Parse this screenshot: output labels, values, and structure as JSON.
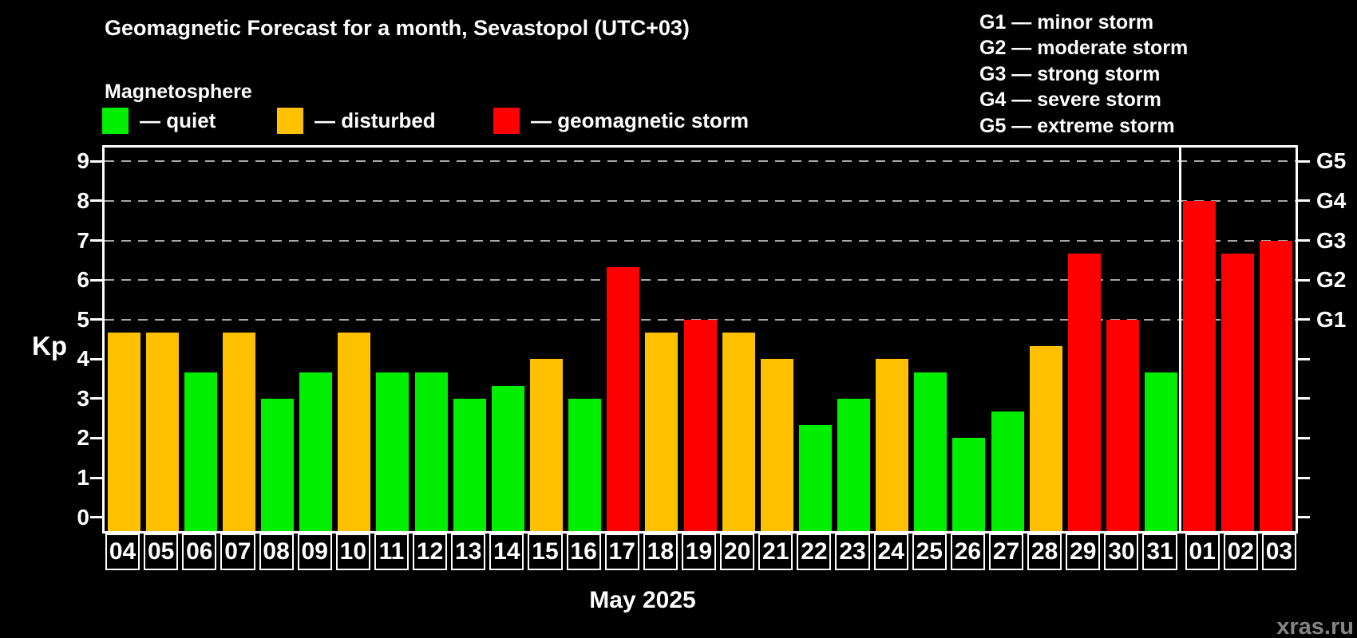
{
  "header": {
    "title": "Geomagnetic Forecast for a month, Sevastopol (UTC+03)",
    "subtitle": "Magnetosphere"
  },
  "legend": {
    "items": [
      {
        "key": "quiet",
        "label": "— quiet",
        "color": "#00ee00"
      },
      {
        "key": "disturbed",
        "label": "— disturbed",
        "color": "#ffc000"
      },
      {
        "key": "storm",
        "label": "— geomagnetic storm",
        "color": "#ff0000"
      }
    ]
  },
  "g_legend": {
    "lines": [
      "G1 — minor storm",
      "G2 — moderate storm",
      "G3 — strong storm",
      "G4 — severe storm",
      "G5 — extreme storm"
    ]
  },
  "watermark": "xras.ru",
  "chart_data": {
    "type": "bar",
    "title": "Geomagnetic Forecast for a month, Sevastopol (UTC+03)",
    "ylabel": "Kp",
    "xlabel": "May 2025",
    "ylim": [
      0,
      9
    ],
    "yticks": [
      0,
      1,
      2,
      3,
      4,
      5,
      6,
      7,
      8,
      9
    ],
    "gridlines_at_kp": [
      5,
      6,
      7,
      8,
      9
    ],
    "grid": "dashed-horizontal",
    "legend_position": "top",
    "right_axis_labels": [
      {
        "kp": 5,
        "text": "G1"
      },
      {
        "kp": 6,
        "text": "G2"
      },
      {
        "kp": 7,
        "text": "G3"
      },
      {
        "kp": 8,
        "text": "G4"
      },
      {
        "kp": 9,
        "text": "G5"
      }
    ],
    "month_divider_after_day": "31",
    "color_map": {
      "quiet": "#00ee00",
      "disturbed": "#ffc000",
      "storm": "#ff0000"
    },
    "bars": [
      {
        "day": "04",
        "kp": 4.67,
        "status": "disturbed"
      },
      {
        "day": "05",
        "kp": 4.67,
        "status": "disturbed"
      },
      {
        "day": "06",
        "kp": 3.67,
        "status": "quiet"
      },
      {
        "day": "07",
        "kp": 4.67,
        "status": "disturbed"
      },
      {
        "day": "08",
        "kp": 3.0,
        "status": "quiet"
      },
      {
        "day": "09",
        "kp": 3.67,
        "status": "quiet"
      },
      {
        "day": "10",
        "kp": 4.67,
        "status": "disturbed"
      },
      {
        "day": "11",
        "kp": 3.67,
        "status": "quiet"
      },
      {
        "day": "12",
        "kp": 3.67,
        "status": "quiet"
      },
      {
        "day": "13",
        "kp": 3.0,
        "status": "quiet"
      },
      {
        "day": "14",
        "kp": 3.33,
        "status": "quiet"
      },
      {
        "day": "15",
        "kp": 4.0,
        "status": "disturbed"
      },
      {
        "day": "16",
        "kp": 3.0,
        "status": "quiet"
      },
      {
        "day": "17",
        "kp": 6.33,
        "status": "storm"
      },
      {
        "day": "18",
        "kp": 4.67,
        "status": "disturbed"
      },
      {
        "day": "19",
        "kp": 5.0,
        "status": "storm"
      },
      {
        "day": "20",
        "kp": 4.67,
        "status": "disturbed"
      },
      {
        "day": "21",
        "kp": 4.0,
        "status": "disturbed"
      },
      {
        "day": "22",
        "kp": 2.33,
        "status": "quiet"
      },
      {
        "day": "23",
        "kp": 3.0,
        "status": "quiet"
      },
      {
        "day": "24",
        "kp": 4.0,
        "status": "disturbed"
      },
      {
        "day": "25",
        "kp": 3.67,
        "status": "quiet"
      },
      {
        "day": "26",
        "kp": 2.0,
        "status": "quiet"
      },
      {
        "day": "27",
        "kp": 2.67,
        "status": "quiet"
      },
      {
        "day": "28",
        "kp": 4.33,
        "status": "disturbed"
      },
      {
        "day": "29",
        "kp": 6.67,
        "status": "storm"
      },
      {
        "day": "30",
        "kp": 5.0,
        "status": "storm"
      },
      {
        "day": "31",
        "kp": 3.67,
        "status": "quiet"
      },
      {
        "day": "01",
        "kp": 8.0,
        "status": "storm"
      },
      {
        "day": "02",
        "kp": 6.67,
        "status": "storm"
      },
      {
        "day": "03",
        "kp": 7.0,
        "status": "storm"
      }
    ]
  }
}
